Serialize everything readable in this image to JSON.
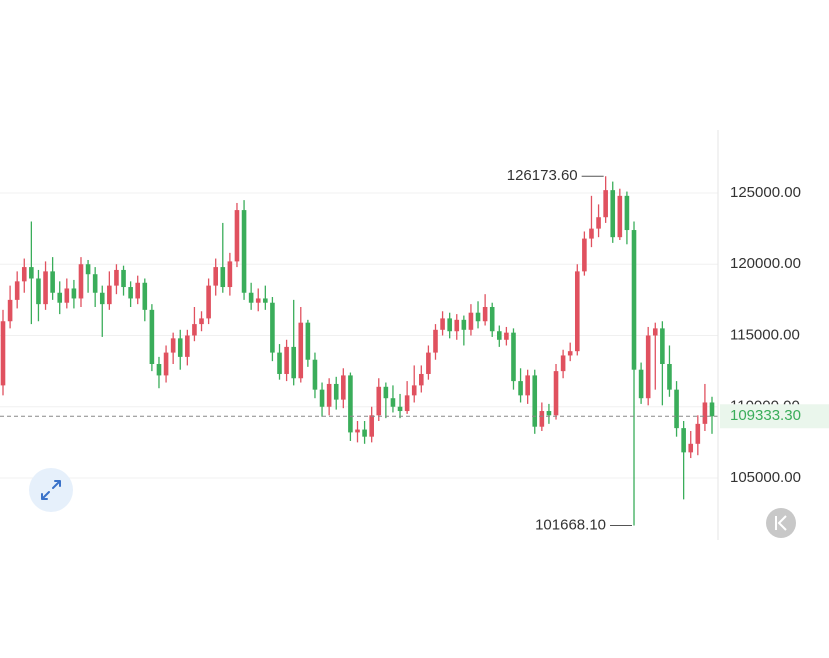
{
  "chart_data": {
    "type": "candlestick",
    "open": [
      111500,
      116000,
      117500,
      118800,
      119800,
      119000,
      117200,
      119500,
      118000,
      117300,
      118300,
      117600,
      120000,
      119300,
      118000,
      117200,
      118500,
      119600,
      118400,
      117600,
      118700,
      116800,
      113000,
      112200,
      113800,
      114800,
      113500,
      115000,
      115800,
      116200,
      118500,
      119800,
      118400,
      120200,
      123800,
      118000,
      117300,
      117600,
      117300,
      113800,
      112300,
      114200,
      112000,
      115900,
      113300,
      111200,
      110000,
      111600,
      110500,
      112200,
      108200,
      108400,
      107900,
      109400,
      111400,
      110600,
      110000,
      109700,
      110800,
      111500,
      112300,
      113800,
      115400,
      116200,
      115300,
      116100,
      115400,
      116600,
      116000,
      117000,
      115300,
      114700,
      115200,
      111800,
      110800,
      112200,
      108600,
      109700,
      109400,
      112500,
      113600,
      113900,
      119500,
      121800,
      122500,
      123300,
      125200,
      121900,
      124800,
      122400,
      112600,
      110600,
      115000,
      115500,
      113000,
      111200,
      108500,
      106800,
      107400,
      108800,
      110300
    ],
    "high": [
      116800,
      118500,
      119500,
      120400,
      123000,
      119600,
      120200,
      120500,
      118800,
      119000,
      118900,
      120500,
      120300,
      119800,
      118500,
      119500,
      120000,
      119900,
      118800,
      119200,
      119000,
      117200,
      113500,
      114300,
      115200,
      115400,
      115400,
      117000,
      116700,
      119000,
      120400,
      122900,
      120800,
      124300,
      124500,
      118700,
      118300,
      118500,
      117700,
      114400,
      114700,
      117500,
      117000,
      116100,
      113800,
      111700,
      112000,
      112100,
      112700,
      112400,
      109000,
      109000,
      110000,
      112000,
      111700,
      111500,
      110900,
      111800,
      112900,
      112900,
      114300,
      115800,
      116700,
      116600,
      116500,
      116400,
      117200,
      117400,
      117900,
      117300,
      115700,
      115600,
      115500,
      112700,
      112600,
      112600,
      110300,
      110200,
      113000,
      114000,
      114500,
      120000,
      122300,
      124800,
      124200,
      126173.6,
      125800,
      125300,
      125100,
      123000,
      113100,
      115600,
      115900,
      116000,
      114300,
      111800,
      109000,
      108300,
      109400,
      111600,
      110700
    ],
    "low": [
      110800,
      115500,
      116900,
      118000,
      115800,
      116000,
      116800,
      117500,
      116500,
      116900,
      116900,
      117000,
      118000,
      117000,
      114900,
      116800,
      117900,
      117800,
      117000,
      117200,
      116000,
      112500,
      111300,
      111700,
      113000,
      112600,
      112900,
      114600,
      115300,
      115800,
      117800,
      118000,
      117800,
      119800,
      117500,
      116800,
      116700,
      116800,
      113200,
      111900,
      111800,
      111500,
      111700,
      112800,
      110600,
      109300,
      109400,
      109800,
      109900,
      107600,
      107500,
      107400,
      107500,
      109000,
      109200,
      109600,
      109200,
      109500,
      110300,
      111000,
      111900,
      113300,
      115000,
      114800,
      114700,
      114300,
      115000,
      115500,
      115700,
      114900,
      114200,
      114300,
      111200,
      110300,
      110200,
      108100,
      108300,
      108800,
      109100,
      112000,
      113200,
      113600,
      119200,
      121200,
      121900,
      122900,
      121500,
      121700,
      121400,
      101668.1,
      110200,
      110100,
      111200,
      110100,
      110700,
      107900,
      103500,
      106400,
      106600,
      108300,
      108100
    ],
    "close": [
      116000,
      117500,
      118800,
      119800,
      119000,
      117200,
      119500,
      118000,
      117300,
      118300,
      117600,
      120000,
      119300,
      118000,
      117200,
      118500,
      119600,
      118400,
      117600,
      118700,
      116800,
      113000,
      112200,
      113800,
      114800,
      113500,
      115000,
      115800,
      116200,
      118500,
      119800,
      118400,
      120200,
      123800,
      118000,
      117300,
      117600,
      117300,
      113800,
      112300,
      114200,
      112000,
      115900,
      113300,
      111200,
      110000,
      111600,
      110500,
      112200,
      108200,
      108400,
      107900,
      109400,
      111400,
      110600,
      110000,
      109700,
      110800,
      111500,
      112300,
      113800,
      115400,
      116200,
      115300,
      116100,
      115400,
      116600,
      116000,
      117000,
      115300,
      114700,
      115200,
      111800,
      110800,
      112200,
      108600,
      109700,
      109400,
      112500,
      113600,
      113900,
      119500,
      121800,
      122500,
      123300,
      125200,
      121900,
      124800,
      122400,
      112600,
      110600,
      115000,
      115500,
      113000,
      111200,
      108500,
      106800,
      107400,
      108800,
      110300,
      109333.3
    ],
    "up_color": "#e0515f",
    "down_color": "#3aad5a",
    "ylim": [
      100650,
      129420
    ],
    "yticks": [
      {
        "value": 105000,
        "label": "105000.00"
      },
      {
        "value": 110000,
        "label": "110000.00"
      },
      {
        "value": 115000,
        "label": "115000.00"
      },
      {
        "value": 120000,
        "label": "120000.00"
      },
      {
        "value": 125000,
        "label": "125000.00"
      }
    ],
    "grid": true,
    "high_mark": {
      "value": 126173.6,
      "label": "126173.60"
    },
    "low_mark": {
      "value": 101668.1,
      "label": "101668.10"
    },
    "last_price": {
      "value": 109333.3,
      "label": "109333.30"
    }
  }
}
